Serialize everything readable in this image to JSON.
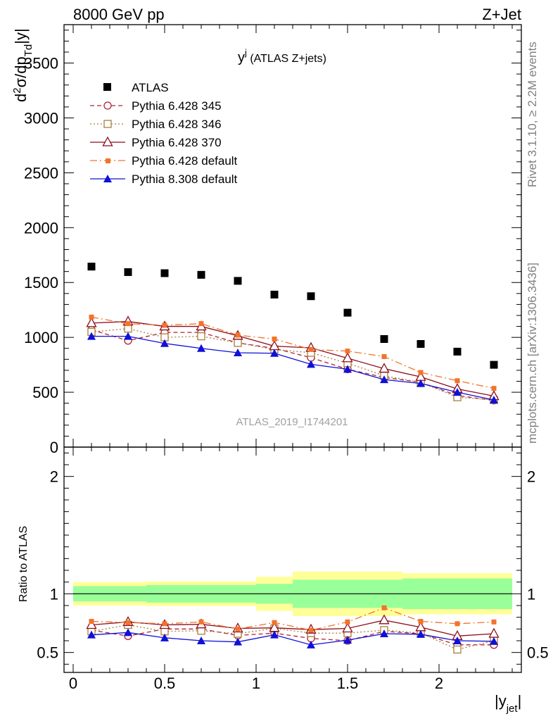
{
  "header": {
    "left": "8000 GeV pp",
    "right": "Z+Jet"
  },
  "side_labels": {
    "rivet": "Rivet 3.1.10, ≥ 2.2M events",
    "mcplots": "mcplots.cern.ch [arXiv:1306.3436]"
  },
  "watermark": "ATLAS_2019_I1744201",
  "plot_title": {
    "main": "y",
    "sup": "j",
    "rest": " (ATLAS Z+jets)"
  },
  "top_axis": {
    "ylabel_parts": {
      "d": "d",
      "two": "2",
      "sigma": "σ/dp",
      "sub": "Td",
      "tail": "|y|"
    },
    "ylim": [
      0,
      3850
    ],
    "ticks": [
      {
        "v": 0,
        "label": "0"
      },
      {
        "v": 500,
        "label": "500"
      },
      {
        "v": 1000,
        "label": "1000"
      },
      {
        "v": 1500,
        "label": "1500"
      },
      {
        "v": 2000,
        "label": "2000"
      },
      {
        "v": 2500,
        "label": "2500"
      },
      {
        "v": 3000,
        "label": "3000"
      },
      {
        "v": 3500,
        "label": "3500"
      }
    ]
  },
  "ratio_axis": {
    "ylabel": "Ratio to ATLAS",
    "ylim": [
      0.33,
      2.25
    ],
    "ticks": [
      {
        "v": 0.5,
        "label": "0.5"
      },
      {
        "v": 1,
        "label": "1"
      },
      {
        "v": 2,
        "label": "2"
      }
    ]
  },
  "x_axis": {
    "label_main": "|y",
    "label_sub": "jet",
    "label_end": "|",
    "xlim": [
      -0.05,
      2.45
    ],
    "ticks": [
      {
        "v": 0,
        "label": "0"
      },
      {
        "v": 0.5,
        "label": "0.5"
      },
      {
        "v": 1,
        "label": "1"
      },
      {
        "v": 1.5,
        "label": "1.5"
      },
      {
        "v": 2,
        "label": "2"
      }
    ]
  },
  "chart_data": {
    "type": "scatter",
    "title": "y^j (ATLAS Z+jets)",
    "xlabel": "|y_jet|",
    "ylabel": "d²σ/dp_Td|y|",
    "grid": false,
    "legend_position": "top-left",
    "x": [
      0.1,
      0.3,
      0.5,
      0.7,
      0.9,
      1.1,
      1.3,
      1.5,
      1.7,
      1.9,
      2.1,
      2.3
    ],
    "x_bins": [
      0.0,
      0.2,
      0.4,
      0.6,
      0.8,
      1.0,
      1.2,
      1.4,
      1.6,
      1.8,
      2.0,
      2.2,
      2.4
    ],
    "data": {
      "name": "ATLAS",
      "color": "#000000",
      "values": [
        1645,
        1595,
        1585,
        1570,
        1515,
        1390,
        1375,
        1225,
        985,
        940,
        870,
        750
      ]
    },
    "mc": [
      {
        "name": "Pythia 6.428 345",
        "color": "#b22234",
        "marker": "circle-open",
        "dash": "6,4",
        "values": [
          1070,
          970,
          1045,
          1045,
          950,
          900,
          815,
          710,
          635,
          590,
          470,
          425
        ]
      },
      {
        "name": "Pythia 6.428 346",
        "color": "#a77f3b",
        "marker": "square-open",
        "dash": "2,3",
        "values": [
          1050,
          1080,
          1000,
          1010,
          950,
          890,
          860,
          765,
          650,
          590,
          455,
          430
        ]
      },
      {
        "name": "Pythia 6.428 370",
        "color": "#8b0e1c",
        "marker": "triangle-open",
        "dash": "",
        "values": [
          1130,
          1145,
          1100,
          1100,
          1015,
          920,
          905,
          810,
          715,
          640,
          530,
          465
        ]
      },
      {
        "name": "Pythia 6.428 default",
        "color": "#f2732a",
        "marker": "square-filled-small",
        "dash": "10,4,2,4",
        "values": [
          1185,
          1125,
          1110,
          1125,
          1020,
          985,
          890,
          875,
          825,
          680,
          605,
          535
        ]
      },
      {
        "name": "Pythia 8.308 default",
        "color": "#1010d8",
        "marker": "triangle-filled",
        "dash": "",
        "values": [
          1010,
          1010,
          945,
          900,
          860,
          855,
          755,
          710,
          615,
          580,
          500,
          430
        ]
      }
    ],
    "ratio": {
      "reference": "ATLAS",
      "band_inner": [
        [
          0.935,
          1.065
        ],
        [
          0.935,
          1.065
        ],
        [
          0.925,
          1.075
        ],
        [
          0.925,
          1.075
        ],
        [
          0.925,
          1.075
        ],
        [
          0.915,
          1.085
        ],
        [
          0.88,
          1.12
        ],
        [
          0.88,
          1.12
        ],
        [
          0.88,
          1.12
        ],
        [
          0.87,
          1.13
        ],
        [
          0.87,
          1.13
        ],
        [
          0.87,
          1.13
        ]
      ],
      "band_outer": [
        [
          0.9,
          1.1
        ],
        [
          0.9,
          1.1
        ],
        [
          0.895,
          1.105
        ],
        [
          0.895,
          1.105
        ],
        [
          0.895,
          1.105
        ],
        [
          0.855,
          1.145
        ],
        [
          0.81,
          1.19
        ],
        [
          0.81,
          1.19
        ],
        [
          0.81,
          1.19
        ],
        [
          0.825,
          1.175
        ],
        [
          0.825,
          1.175
        ],
        [
          0.825,
          1.175
        ]
      ],
      "series": [
        {
          "name": "Pythia 6.428 345",
          "values": [
            0.69,
            0.64,
            0.7,
            0.7,
            0.645,
            0.665,
            0.62,
            0.6,
            0.68,
            0.66,
            0.565,
            0.565
          ]
        },
        {
          "name": "Pythia 6.428 346",
          "values": [
            0.68,
            0.735,
            0.68,
            0.685,
            0.66,
            0.705,
            0.665,
            0.665,
            0.69,
            0.665,
            0.525,
            0.6
          ]
        },
        {
          "name": "Pythia 6.428 370",
          "values": [
            0.735,
            0.76,
            0.735,
            0.74,
            0.705,
            0.71,
            0.695,
            0.705,
            0.775,
            0.715,
            0.64,
            0.66
          ]
        },
        {
          "name": "Pythia 6.428 default",
          "values": [
            0.765,
            0.755,
            0.745,
            0.76,
            0.7,
            0.755,
            0.69,
            0.76,
            0.88,
            0.765,
            0.745,
            0.76
          ]
        },
        {
          "name": "Pythia 8.308 default",
          "values": [
            0.65,
            0.67,
            0.625,
            0.6,
            0.59,
            0.65,
            0.565,
            0.605,
            0.66,
            0.655,
            0.6,
            0.595
          ]
        }
      ]
    }
  }
}
